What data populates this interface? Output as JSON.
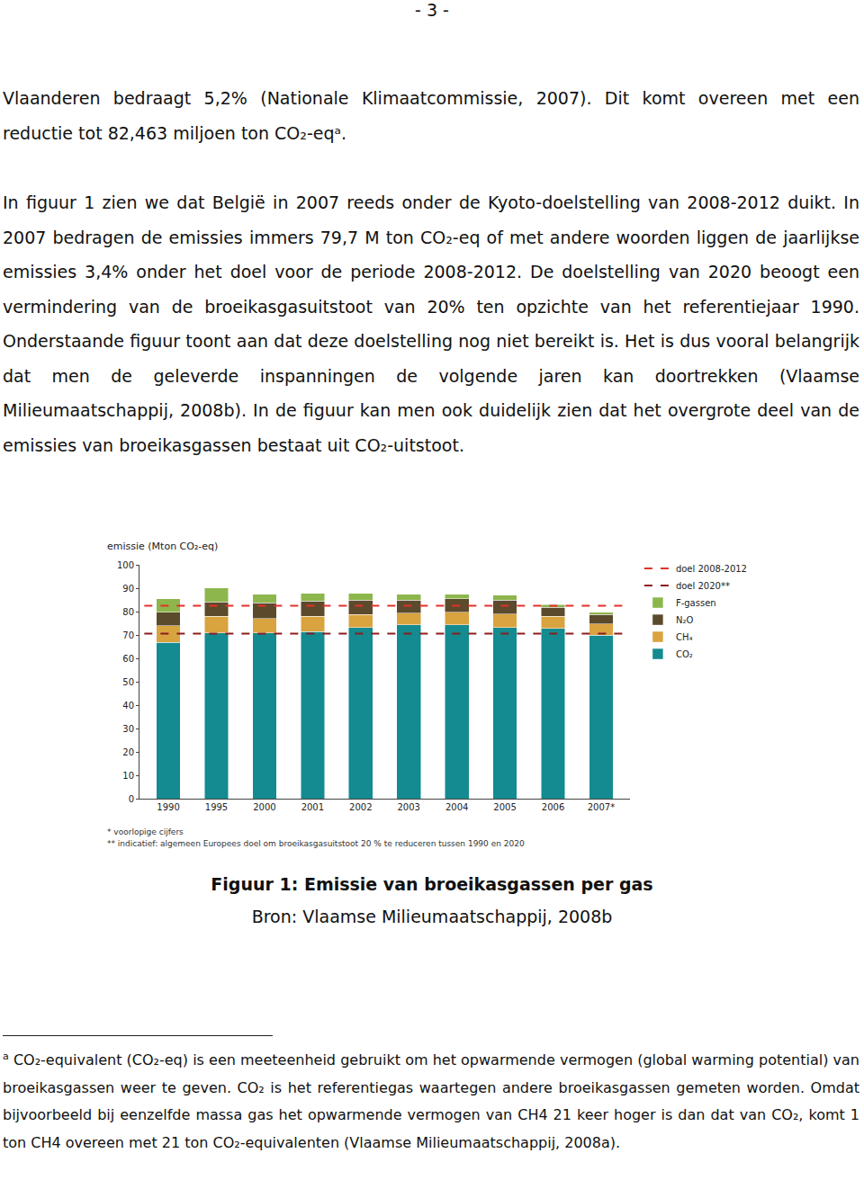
{
  "document": {
    "page_number": "- 3 -",
    "paragraphs": [
      "Vlaanderen bedraagt 5,2% (Nationale Klimaatcommissie, 2007). Dit komt overeen met een reductie tot 82,463 miljoen ton CO₂-eqᵃ.",
      "In figuur 1 zien we dat België in 2007 reeds onder de Kyoto-doelstelling van 2008-2012 duikt. In 2007 bedragen de emissies immers 79,7 M ton CO₂-eq of met andere woorden liggen de jaarlijkse emissies 3,4% onder het doel voor de periode 2008-2012. De doelstelling van 2020 beoogt een vermindering van de broeikasgasuitstoot van 20% ten opzichte van het referentiejaar 1990. Onderstaande figuur toont aan dat deze doelstelling nog niet bereikt is. Het is dus vooral belangrijk dat men de geleverde inspanningen de volgende jaren kan doortrekken (Vlaamse Milieumaatschappij, 2008b). In de figuur kan men ook duidelijk zien dat het overgrote deel van de emissies van broeikasgassen bestaat uit CO₂-uitstoot."
    ],
    "figure_caption": "Figuur 1: Emissie van broeikasgassen per gas",
    "figure_source": "Bron: Vlaamse Milieumaatschappij, 2008b",
    "footnote_marker": "a",
    "footnote": "CO₂-equivalent (CO₂-eq) is een meeteenheid gebruikt om het opwarmende vermogen (global warming potential) van broeikasgassen weer te geven. CO₂ is het referentiegas waartegen andere broeikasgassen gemeten worden. Omdat bijvoorbeeld bij eenzelfde massa gas het opwarmende vermogen van CH4 21 keer hoger is dan dat van CO₂, komt 1 ton CH4 overeen met 21 ton CO₂-equivalenten (Vlaamse Milieumaatschappij, 2008a)."
  },
  "chart_data": {
    "type": "bar",
    "stacked": true,
    "y_label": "emissie (Mton CO₂-eq)",
    "categories": [
      "1990",
      "1995",
      "2000",
      "2001",
      "2002",
      "2003",
      "2004",
      "2005",
      "2006",
      "2007*"
    ],
    "series": [
      {
        "name": "CO₂",
        "color": "#138b91",
        "values": [
          66.8,
          70.8,
          70.8,
          71.5,
          73.1,
          74.3,
          74.3,
          73.1,
          72.7,
          70.0
        ]
      },
      {
        "name": "CH₄",
        "color": "#d9a33f",
        "values": [
          7.1,
          7.1,
          6.3,
          6.4,
          5.6,
          5.1,
          5.5,
          5.9,
          5.2,
          4.7
        ]
      },
      {
        "name": "N₂O",
        "color": "#5b4a2b",
        "values": [
          5.9,
          6.3,
          6.7,
          6.7,
          6.3,
          5.6,
          5.6,
          6.0,
          3.9,
          4.0
        ]
      },
      {
        "name": "F-gassen",
        "color": "#8db64c",
        "values": [
          5.6,
          5.9,
          3.6,
          3.1,
          2.7,
          2.4,
          2.0,
          2.0,
          1.2,
          1.0
        ]
      },
      {
        "name": "doel 2020**",
        "type": "line",
        "line_style": "dash",
        "color": "#8b1c1c",
        "value": 70.6
      },
      {
        "name": "doel 2008-2012",
        "type": "line",
        "line_style": "dash",
        "color": "#e3312b",
        "value": 82.5
      }
    ],
    "ylim": [
      0,
      100
    ],
    "yticks": [
      0,
      10,
      20,
      30,
      40,
      50,
      60,
      70,
      80,
      90,
      100
    ],
    "grid": false,
    "legend": "top right",
    "notes": [
      "* voorlopige cijfers",
      "** indicatief: algemeen Europees doel om broeikasgasuitstoot 20 % te reduceren tussen 1990 en 2020"
    ]
  }
}
